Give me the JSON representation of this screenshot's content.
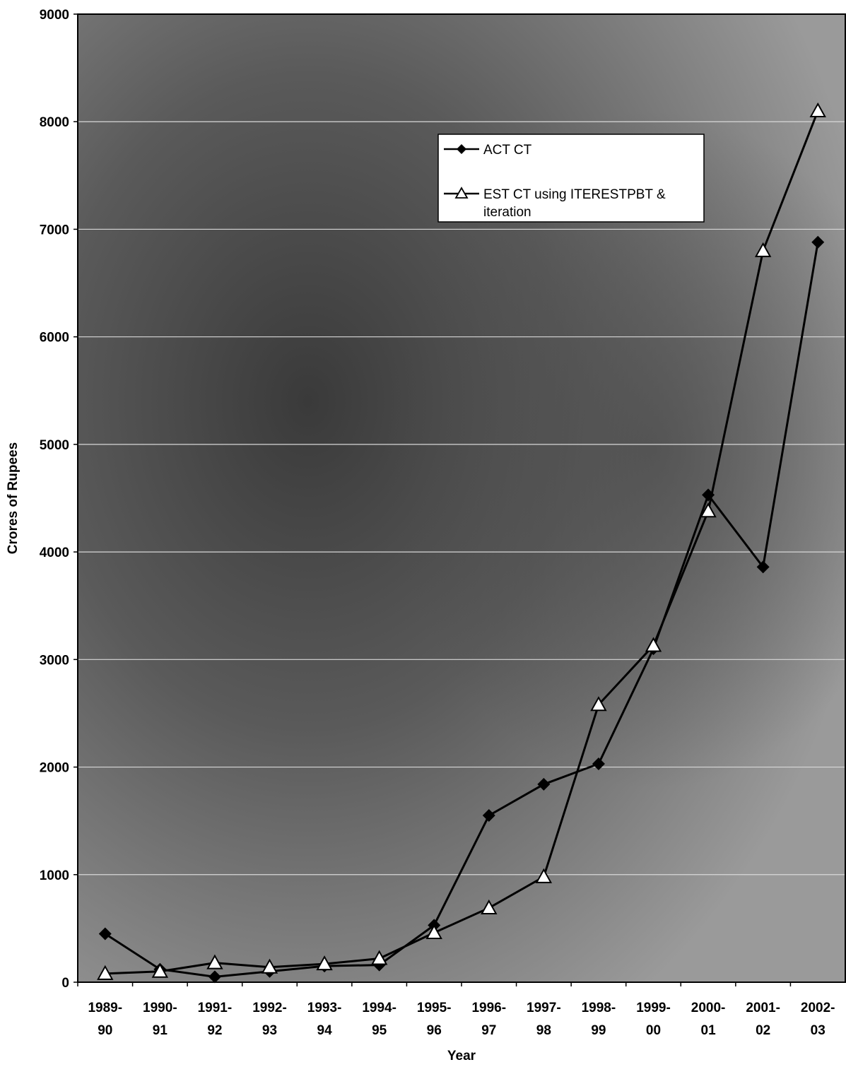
{
  "chart_data": {
    "type": "line",
    "title": "",
    "xlabel": "Year",
    "ylabel": "Crores of Rupees",
    "ylim": [
      0,
      9000
    ],
    "yticks": [
      "0",
      "1000",
      "2000",
      "3000",
      "4000",
      "5000",
      "6000",
      "7000",
      "8000",
      "9000"
    ],
    "categories": [
      [
        "1989-",
        "90"
      ],
      [
        "1990-",
        "91"
      ],
      [
        "1991-",
        "92"
      ],
      [
        "1992-",
        "93"
      ],
      [
        "1993-",
        "94"
      ],
      [
        "1994-",
        "95"
      ],
      [
        "1995-",
        "96"
      ],
      [
        "1996-",
        "97"
      ],
      [
        "1997-",
        "98"
      ],
      [
        "1998-",
        "99"
      ],
      [
        "1999-",
        "00"
      ],
      [
        "2000-",
        "01"
      ],
      [
        "2001-",
        "02"
      ],
      [
        "2002-",
        "03"
      ]
    ],
    "grid": true,
    "legend_position": "top-right",
    "background_color": "#7d7d7d",
    "series": [
      {
        "name": "ACT CT",
        "marker": "diamond",
        "color": "#000000",
        "values": [
          450,
          120,
          50,
          100,
          150,
          160,
          530,
          1550,
          1840,
          2030,
          3100,
          4530,
          3860,
          6880
        ]
      },
      {
        "name": "EST CT using  ITERESTPBT & iteration",
        "marker": "triangle-open",
        "color": "#000000",
        "values": [
          80,
          100,
          180,
          140,
          170,
          220,
          460,
          690,
          980,
          2580,
          3130,
          4380,
          6800,
          8100
        ]
      }
    ]
  }
}
